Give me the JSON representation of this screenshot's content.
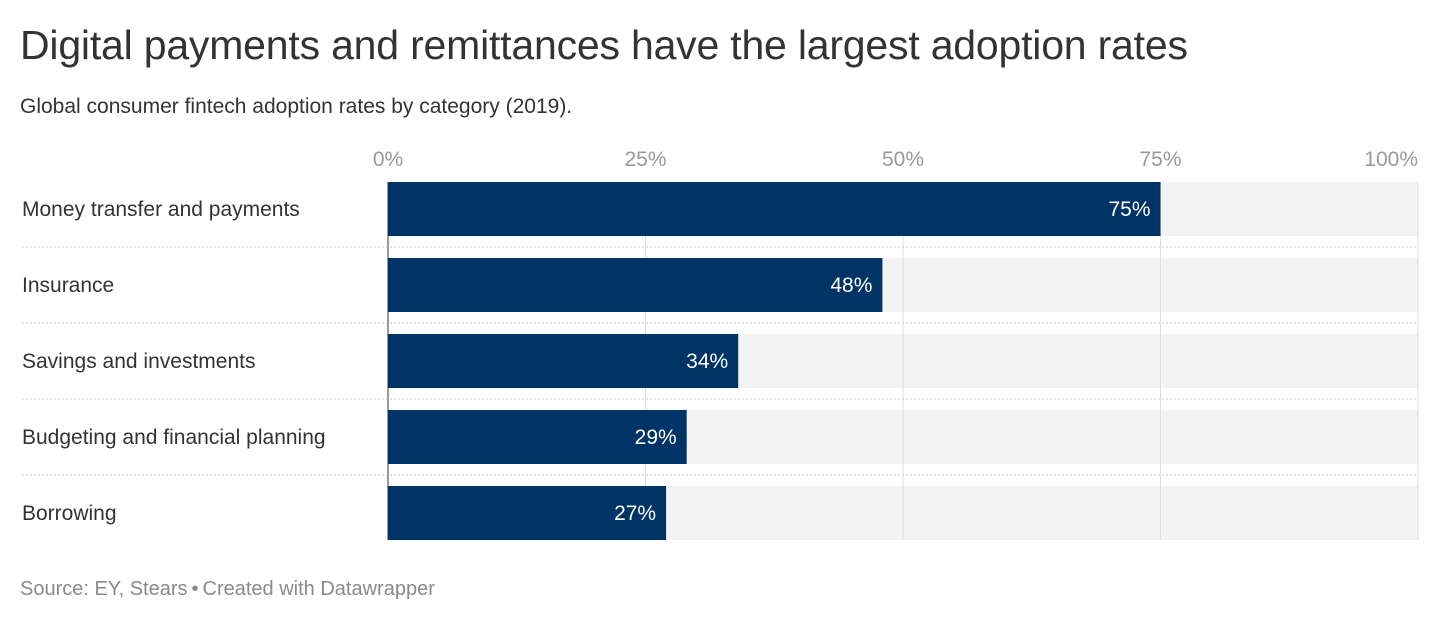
{
  "header": {
    "title": "Digital payments and remittances have the largest adoption rates",
    "subtitle": "Global consumer fintech adoption rates by category (2019)."
  },
  "footer": {
    "source": "Source: EY, Stears",
    "separator": "•",
    "credit": "Created with Datawrapper"
  },
  "colors": {
    "bar": "#003366",
    "background_bar": "#f3f3f3",
    "gridline": "#dddddd",
    "tick_text": "#999999",
    "label_text": "#333333",
    "value_text": "#ffffff"
  },
  "chart_data": {
    "type": "bar",
    "orientation": "horizontal",
    "title": "Digital payments and remittances have the largest adoption rates",
    "subtitle": "Global consumer fintech adoption rates by category (2019).",
    "categories": [
      "Money transfer and payments",
      "Insurance",
      "Savings and investments",
      "Budgeting and financial planning",
      "Borrowing"
    ],
    "values": [
      75,
      48,
      34,
      29,
      27
    ],
    "value_labels": [
      "75%",
      "48%",
      "34%",
      "29%",
      "27%"
    ],
    "xlim": [
      0,
      100
    ],
    "ticks": [
      0,
      25,
      50,
      75,
      100
    ],
    "tick_labels": [
      "0%",
      "25%",
      "50%",
      "75%",
      "100%"
    ],
    "tick_position": "top",
    "grid": true,
    "legend": "none"
  }
}
